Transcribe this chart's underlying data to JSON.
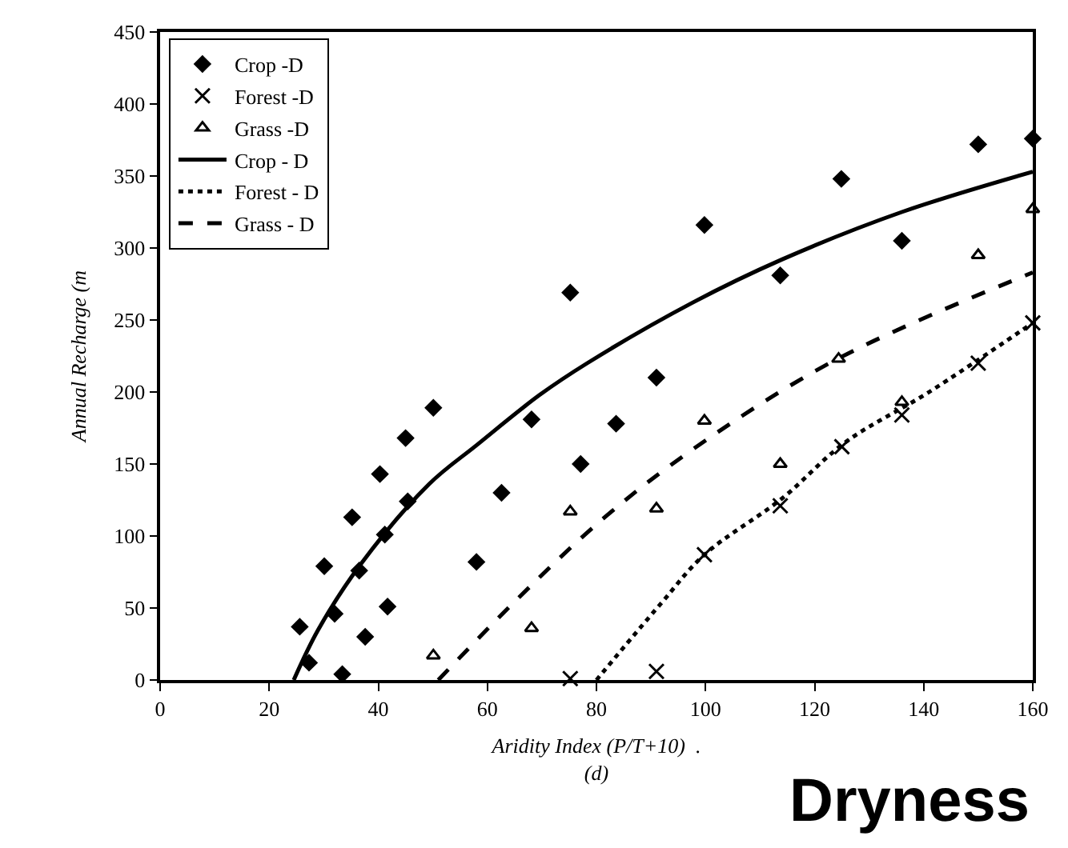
{
  "chart_data": {
    "type": "scatter",
    "xlabel": "Aridity Index (P/T+10)  .\n(d)",
    "ylabel": "Annual Recharge (m",
    "xlim": [
      0,
      160
    ],
    "xticks": [
      0,
      20,
      40,
      60,
      80,
      100,
      120,
      140,
      160
    ],
    "ylim": [
      0,
      450
    ],
    "yticks": [
      0,
      50,
      100,
      150,
      200,
      250,
      300,
      350,
      400,
      450
    ],
    "legend": "top left",
    "annotations": [
      "Dryness"
    ],
    "series": [
      {
        "name": "Crop -D",
        "marker": "diamond",
        "color": "#000000",
        "x": [
          25.6,
          27.3,
          30.1,
          32,
          33.4,
          35.2,
          36.5,
          37.6,
          40.3,
          41.2,
          41.7,
          45,
          45.4,
          50.1,
          58,
          62.6,
          68.1,
          75.2,
          77.1,
          83.6,
          91,
          99.8,
          113.7,
          124.9,
          136,
          150,
          160
        ],
        "values": [
          37,
          12,
          79,
          46,
          4,
          113,
          76,
          30,
          143,
          101,
          51,
          168,
          124,
          189,
          82,
          130,
          181,
          269,
          150,
          178,
          210,
          316,
          281,
          348,
          305,
          372,
          376
        ]
      },
      {
        "name": "Forest -D",
        "marker": "cross",
        "color": "#000000",
        "x": [
          75.2,
          91,
          99.8,
          113.7,
          125,
          136,
          150,
          160
        ],
        "values": [
          1,
          6,
          87,
          121,
          162,
          184,
          220,
          248
        ]
      },
      {
        "name": "Grass -D",
        "marker": "triangle",
        "color": "#000000",
        "x": [
          50.1,
          68.1,
          75.2,
          91,
          99.8,
          113.7,
          124.4,
          136,
          150,
          160
        ],
        "values": [
          17,
          36,
          117,
          119,
          180,
          150,
          223,
          193,
          295,
          327
        ]
      },
      {
        "name": "Crop - D",
        "type": "line",
        "line_style": "solid",
        "color": "#000000",
        "x": [
          24.5,
          29,
          36.7,
          49.3,
          58,
          69.6,
          78.3,
          97.6,
          114,
          136,
          160
        ],
        "values": [
          0,
          35,
          80,
          136,
          163,
          198,
          220,
          262,
          292,
          325,
          353
        ]
      },
      {
        "name": "Forest - D",
        "type": "line",
        "line_style": "dotted",
        "color": "#000000",
        "x": [
          80,
          91.8,
          99.8,
          114,
          125.6,
          141,
          160
        ],
        "values": [
          0,
          53,
          87,
          126,
          165,
          200,
          248
        ]
      },
      {
        "name": "Grass - D",
        "type": "line",
        "line_style": "dashed",
        "color": "#000000",
        "x": [
          51,
          65.7,
          81.2,
          97.6,
          123.7,
          160
        ],
        "values": [
          0,
          57,
          112,
          160,
          222,
          283
        ]
      }
    ]
  }
}
